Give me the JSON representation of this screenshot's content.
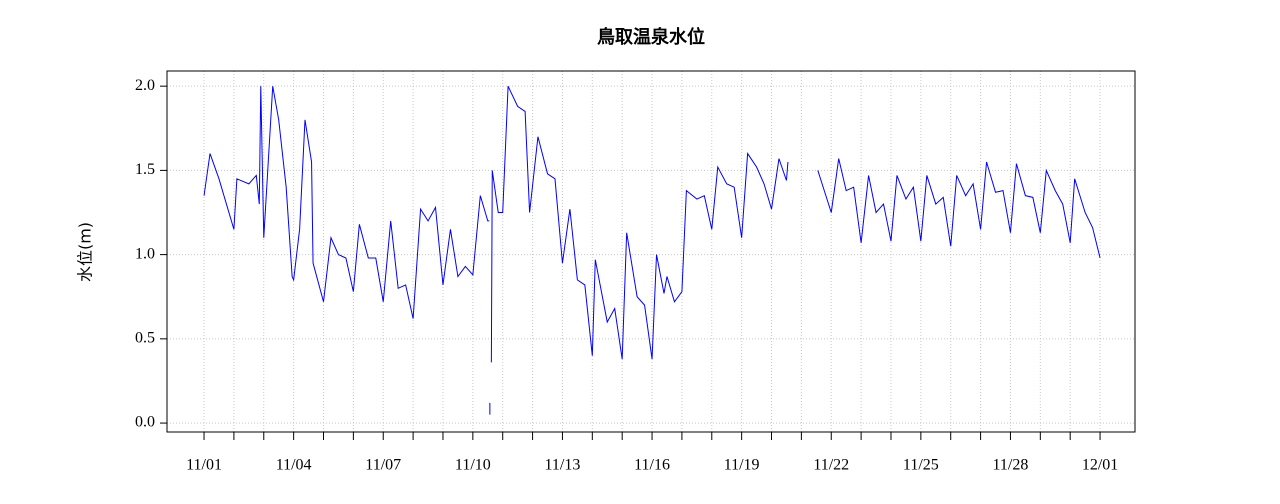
{
  "chart_data": {
    "type": "line",
    "title": "鳥取温泉水位",
    "y_label": "水位(m)",
    "color": "#0000ff",
    "grid": true,
    "xlim": [
      -1.24,
      31.17
    ],
    "ylim": [
      -0.053,
      2.09
    ],
    "xticks": [
      {
        "value": 0,
        "label": "11/01"
      },
      {
        "value": 3,
        "label": "11/04"
      },
      {
        "value": 6,
        "label": "11/07"
      },
      {
        "value": 9,
        "label": "11/10"
      },
      {
        "value": 12,
        "label": "11/13"
      },
      {
        "value": 15,
        "label": "11/16"
      },
      {
        "value": 18,
        "label": "11/19"
      },
      {
        "value": 21,
        "label": "11/22"
      },
      {
        "value": 24,
        "label": "11/25"
      },
      {
        "value": 27,
        "label": "11/28"
      },
      {
        "value": 30,
        "label": "12/01"
      }
    ],
    "xminorticks": [
      1,
      2,
      4,
      5,
      7,
      8,
      10,
      11,
      13,
      14,
      16,
      17,
      19,
      20,
      22,
      23,
      25,
      26,
      28,
      29
    ],
    "yticks": [
      {
        "value": 0,
        "label": "0.0"
      },
      {
        "value": 0.5,
        "label": "0.5"
      },
      {
        "value": 1,
        "label": "1.0"
      },
      {
        "value": 1.5,
        "label": "1.5"
      },
      {
        "value": 2,
        "label": "2.0"
      }
    ],
    "x": [
      0,
      0.2,
      0.5,
      1.0,
      1.1,
      1.5,
      1.75,
      1.85,
      1.9,
      2.0,
      2.3,
      2.5,
      2.75,
      2.95,
      3.0,
      3.2,
      3.38,
      3.6,
      3.65,
      4.0,
      4.25,
      4.5,
      4.75,
      5.0,
      5.2,
      5.5,
      5.75,
      6.0,
      6.25,
      6.5,
      6.75,
      7.0,
      7.25,
      7.5,
      7.75,
      8.0,
      8.25,
      8.5,
      8.75,
      9.0,
      9.25,
      9.5,
      9.55,
      9.56,
      9.57,
      9.57,
      9.58,
      9.62,
      9.65,
      9.85,
      10.0,
      10.18,
      10.5,
      10.75,
      10.9,
      11.18,
      11.5,
      11.75,
      12.0,
      12.25,
      12.5,
      12.75,
      13.0,
      13.1,
      13.5,
      13.75,
      14.0,
      14.15,
      14.5,
      14.75,
      15.0,
      15.15,
      15.4,
      15.5,
      15.75,
      16.0,
      16.15,
      16.5,
      16.75,
      17.0,
      17.2,
      17.5,
      17.75,
      18.0,
      18.2,
      18.5,
      18.75,
      19.0,
      19.25,
      19.5,
      19.55,
      20.0,
      20.55,
      21.0,
      21.25,
      21.5,
      21.75,
      22.0,
      22.25,
      22.5,
      22.75,
      23.0,
      23.2,
      23.5,
      23.75,
      24.0,
      24.2,
      24.5,
      24.75,
      25.0,
      25.2,
      25.5,
      25.75,
      26.0,
      26.2,
      26.5,
      26.75,
      27.0,
      27.2,
      27.5,
      27.75,
      28.0,
      28.2,
      28.5,
      28.75,
      29.0,
      29.15,
      29.5,
      29.75,
      30.0
    ],
    "values": [
      1.35,
      1.6,
      1.45,
      1.15,
      1.45,
      1.42,
      1.47,
      1.3,
      2.0,
      1.1,
      2.0,
      1.8,
      1.4,
      0.87,
      0.85,
      1.15,
      1.8,
      1.55,
      0.95,
      0.72,
      1.1,
      1.0,
      0.98,
      0.78,
      1.18,
      0.98,
      0.98,
      0.72,
      1.2,
      0.8,
      0.82,
      0.62,
      1.27,
      1.2,
      1.28,
      0.82,
      1.15,
      0.87,
      0.93,
      0.88,
      1.35,
      1.2,
      1.2,
      null,
      0.12,
      0.05,
      null,
      0.36,
      1.5,
      1.25,
      1.25,
      2.0,
      1.88,
      1.85,
      1.25,
      1.7,
      1.48,
      1.45,
      0.95,
      1.27,
      0.85,
      0.82,
      0.4,
      0.97,
      0.6,
      0.68,
      0.38,
      1.13,
      0.75,
      0.7,
      0.38,
      1.0,
      0.77,
      0.87,
      0.72,
      0.78,
      1.38,
      1.33,
      1.35,
      1.15,
      1.52,
      1.42,
      1.4,
      1.1,
      1.6,
      1.52,
      1.42,
      1.27,
      1.57,
      1.44,
      1.55,
      null,
      1.5,
      1.25,
      1.57,
      1.38,
      1.4,
      1.07,
      1.47,
      1.25,
      1.3,
      1.08,
      1.47,
      1.33,
      1.4,
      1.08,
      1.47,
      1.3,
      1.34,
      1.05,
      1.47,
      1.35,
      1.42,
      1.15,
      1.55,
      1.37,
      1.38,
      1.13,
      1.54,
      1.35,
      1.34,
      1.13,
      1.5,
      1.38,
      1.3,
      1.07,
      1.45,
      1.25,
      1.16,
      0.98
    ]
  }
}
